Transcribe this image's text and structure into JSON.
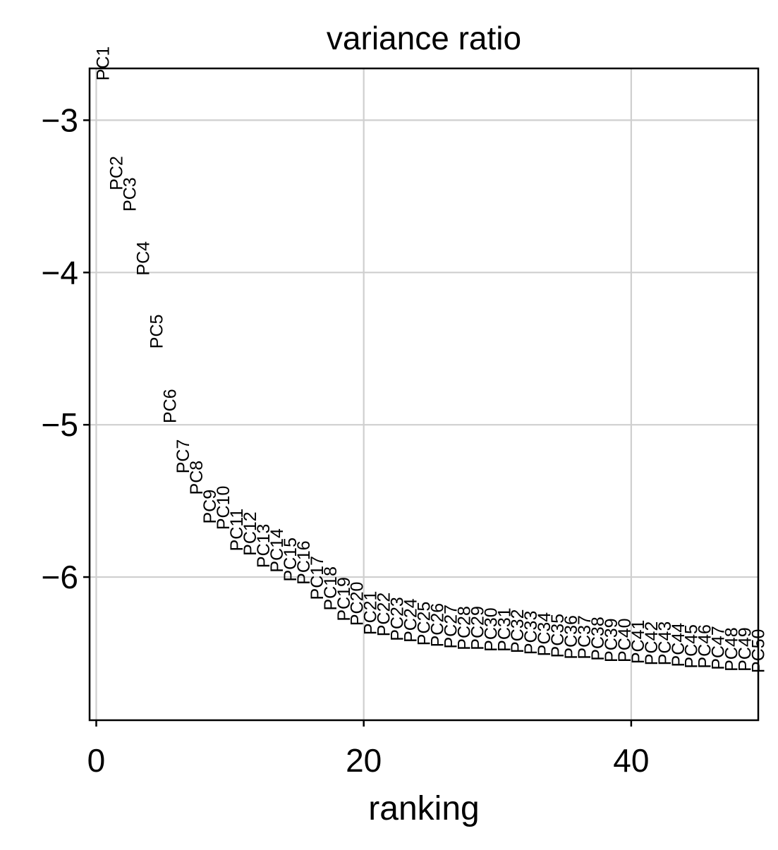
{
  "chart_data": {
    "type": "scatter",
    "title": "variance ratio",
    "xlabel": "ranking",
    "ylabel": "",
    "xlim": [
      -0.5,
      49.5
    ],
    "ylim": [
      -6.94,
      -2.66
    ],
    "xticks": [
      0,
      20,
      40
    ],
    "xtick_labels": [
      "0",
      "20",
      "40"
    ],
    "yticks": [
      -3,
      -4,
      -5,
      -6
    ],
    "ytick_labels": [
      "−3",
      "−4",
      "−5",
      "−6"
    ],
    "grid": true,
    "marker": "text-label",
    "labels": [
      "PC1",
      "PC2",
      "PC3",
      "PC4",
      "PC5",
      "PC6",
      "PC7",
      "PC8",
      "PC9",
      "PC10",
      "PC11",
      "PC12",
      "PC13",
      "PC14",
      "PC15",
      "PC16",
      "PC17",
      "PC18",
      "PC19",
      "PC20",
      "PC21",
      "PC22",
      "PC23",
      "PC24",
      "PC25",
      "PC26",
      "PC27",
      "PC28",
      "PC29",
      "PC30",
      "PC31",
      "PC32",
      "PC33",
      "PC34",
      "PC35",
      "PC36",
      "PC37",
      "PC38",
      "PC39",
      "PC40",
      "PC41",
      "PC42",
      "PC43",
      "PC44",
      "PC45",
      "PC46",
      "PC47",
      "PC48",
      "PC49",
      "PC50"
    ],
    "x": [
      0,
      1,
      2,
      3,
      4,
      5,
      6,
      7,
      8,
      9,
      10,
      11,
      12,
      13,
      14,
      15,
      16,
      17,
      18,
      19,
      20,
      21,
      22,
      23,
      24,
      25,
      26,
      27,
      28,
      29,
      30,
      31,
      32,
      33,
      34,
      35,
      36,
      37,
      38,
      39,
      40,
      41,
      42,
      43,
      44,
      45,
      46,
      47,
      48,
      49
    ],
    "y": [
      -2.74,
      -3.46,
      -3.6,
      -4.02,
      -4.5,
      -4.99,
      -5.32,
      -5.46,
      -5.65,
      -5.69,
      -5.83,
      -5.86,
      -5.94,
      -5.97,
      -6.03,
      -6.05,
      -6.15,
      -6.22,
      -6.29,
      -6.32,
      -6.38,
      -6.39,
      -6.42,
      -6.43,
      -6.45,
      -6.46,
      -6.47,
      -6.48,
      -6.48,
      -6.49,
      -6.49,
      -6.5,
      -6.51,
      -6.52,
      -6.53,
      -6.54,
      -6.54,
      -6.55,
      -6.56,
      -6.56,
      -6.57,
      -6.58,
      -6.58,
      -6.59,
      -6.6,
      -6.6,
      -6.61,
      -6.62,
      -6.62,
      -6.63
    ]
  }
}
